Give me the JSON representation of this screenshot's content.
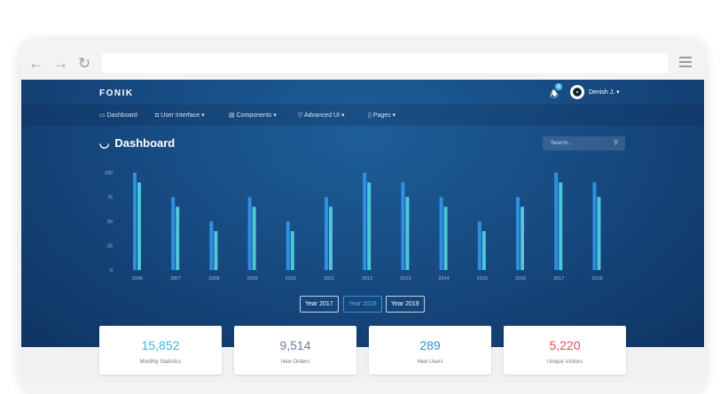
{
  "browser": {
    "back_icon": "arrow-left-icon",
    "forward_icon": "arrow-right-icon",
    "reload_icon": "reload-icon",
    "menu_icon": "hamburger-icon"
  },
  "header": {
    "brand": "FONIK",
    "notification_count": "5",
    "user_name": "Denish J. ▾"
  },
  "menu": [
    {
      "icon": "▭",
      "label": "Dashboard"
    },
    {
      "icon": "◘",
      "label": "User Interface ▾"
    },
    {
      "icon": "▤",
      "label": "Components ▾"
    },
    {
      "icon": "▽",
      "label": "Advanced UI ▾"
    },
    {
      "icon": "▯",
      "label": "Pages ▾"
    }
  ],
  "page": {
    "title": "Dashboard",
    "search_placeholder": "Search..."
  },
  "chart_data": {
    "type": "bar",
    "categories": [
      "2006",
      "2007",
      "2008",
      "2009",
      "2010",
      "2011",
      "2012",
      "2013",
      "2014",
      "2015",
      "2016",
      "2017",
      "2018"
    ],
    "series": [
      {
        "values": [
          100,
          75,
          50,
          75,
          50,
          75,
          100,
          90,
          75,
          50,
          75,
          100,
          90
        ],
        "color": "#2f8fe0"
      },
      {
        "values": [
          90,
          65,
          40,
          65,
          40,
          65,
          90,
          75,
          65,
          40,
          65,
          90,
          75
        ],
        "color": "#4fc7da"
      }
    ],
    "yticks": [
      0,
      25,
      50,
      75,
      100
    ],
    "ylim": [
      0,
      100
    ],
    "grid": false
  },
  "year_buttons": [
    {
      "label": "Year 2017"
    },
    {
      "label": "Year 2018",
      "active": true
    },
    {
      "label": "Year 2019"
    }
  ],
  "stats": [
    {
      "value": "15,852",
      "label": "Monthly Statistics",
      "color": "#3fb3d6"
    },
    {
      "value": "9,514",
      "label": "New Orders",
      "color": "#6a7f9c"
    },
    {
      "value": "289",
      "label": "New Users",
      "color": "#2d8fd6"
    },
    {
      "value": "5,220",
      "label": "Unique Visitors",
      "color": "#ef4b4b"
    }
  ]
}
